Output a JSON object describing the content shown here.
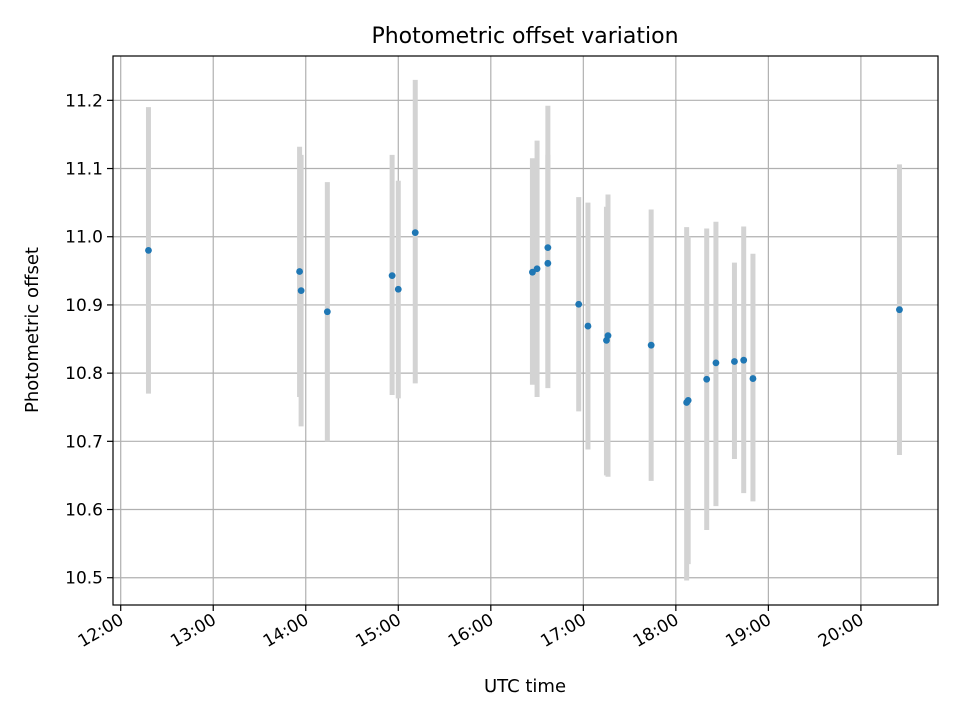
{
  "chart_data": {
    "type": "scatter",
    "title": "Photometric offset variation",
    "xlabel": "UTC time",
    "ylabel": "Photometric offset",
    "x_axis": "time",
    "xlim": [
      "11:55",
      "20:50"
    ],
    "ylim": [
      10.46,
      11.265
    ],
    "x_ticks": [
      "12:00",
      "13:00",
      "14:00",
      "15:00",
      "16:00",
      "17:00",
      "18:00",
      "19:00",
      "20:00"
    ],
    "y_ticks": [
      "10.5",
      "10.6",
      "10.7",
      "10.8",
      "10.9",
      "11.0",
      "11.1",
      "11.2"
    ],
    "grid": true,
    "colors": {
      "point": "#1f77b4",
      "errorbar": "#d3d3d3"
    },
    "points": [
      {
        "x": "12:18",
        "y": 10.98,
        "yerr_low": 10.77,
        "yerr_high": 11.19
      },
      {
        "x": "13:56",
        "y": 10.949,
        "yerr_low": 10.765,
        "yerr_high": 11.132
      },
      {
        "x": "13:57",
        "y": 10.921,
        "yerr_low": 10.722,
        "yerr_high": 11.12
      },
      {
        "x": "14:14",
        "y": 10.89,
        "yerr_low": 10.7,
        "yerr_high": 11.08
      },
      {
        "x": "14:56",
        "y": 10.943,
        "yerr_low": 10.768,
        "yerr_high": 11.12
      },
      {
        "x": "15:00",
        "y": 10.923,
        "yerr_low": 10.763,
        "yerr_high": 11.082
      },
      {
        "x": "15:11",
        "y": 11.006,
        "yerr_low": 10.785,
        "yerr_high": 11.23
      },
      {
        "x": "16:27",
        "y": 10.948,
        "yerr_low": 10.783,
        "yerr_high": 11.115
      },
      {
        "x": "16:30",
        "y": 10.953,
        "yerr_low": 10.765,
        "yerr_high": 11.141
      },
      {
        "x": "16:37",
        "y": 10.984,
        "yerr_low": 10.778,
        "yerr_high": 11.192
      },
      {
        "x": "16:37",
        "y": 10.961,
        "yerr_low": 10.8,
        "yerr_high": 11.12
      },
      {
        "x": "16:57",
        "y": 10.901,
        "yerr_low": 10.744,
        "yerr_high": 11.058
      },
      {
        "x": "17:03",
        "y": 10.869,
        "yerr_low": 10.688,
        "yerr_high": 11.05
      },
      {
        "x": "17:15",
        "y": 10.848,
        "yerr_low": 10.65,
        "yerr_high": 11.044
      },
      {
        "x": "17:16",
        "y": 10.855,
        "yerr_low": 10.648,
        "yerr_high": 11.062
      },
      {
        "x": "17:44",
        "y": 10.841,
        "yerr_low": 10.642,
        "yerr_high": 11.04
      },
      {
        "x": "18:07",
        "y": 10.757,
        "yerr_low": 10.496,
        "yerr_high": 11.014
      },
      {
        "x": "18:08",
        "y": 10.76,
        "yerr_low": 10.52,
        "yerr_high": 11.0
      },
      {
        "x": "18:20",
        "y": 10.791,
        "yerr_low": 10.57,
        "yerr_high": 11.012
      },
      {
        "x": "18:26",
        "y": 10.815,
        "yerr_low": 10.605,
        "yerr_high": 11.022
      },
      {
        "x": "18:38",
        "y": 10.817,
        "yerr_low": 10.674,
        "yerr_high": 10.962
      },
      {
        "x": "18:44",
        "y": 10.819,
        "yerr_low": 10.624,
        "yerr_high": 11.015
      },
      {
        "x": "18:50",
        "y": 10.792,
        "yerr_low": 10.612,
        "yerr_high": 10.975
      },
      {
        "x": "20:25",
        "y": 10.893,
        "yerr_low": 10.68,
        "yerr_high": 11.106
      }
    ]
  }
}
